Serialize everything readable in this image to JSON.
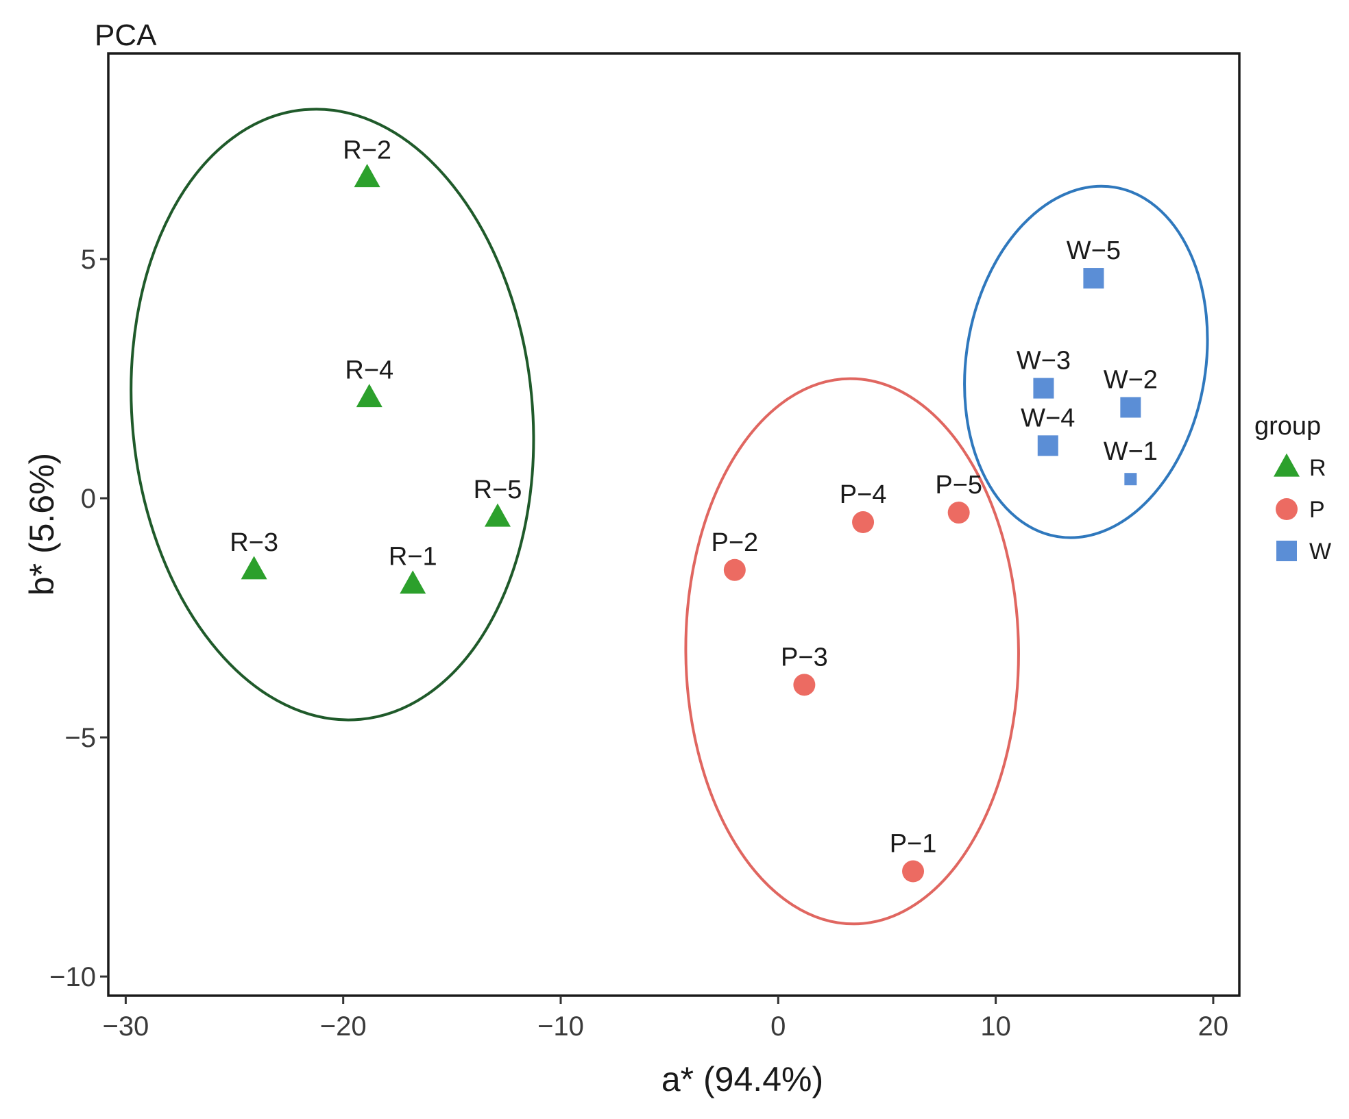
{
  "chart_data": {
    "type": "scatter",
    "title": "PCA",
    "xlabel": "a* (94.4%)",
    "ylabel": "b* (5.6%)",
    "xlim": [
      -30.8,
      21.2
    ],
    "ylim": [
      -10.4,
      9.3
    ],
    "xticks": [
      -30,
      -20,
      -10,
      0,
      10,
      20
    ],
    "xtick_labels": [
      "−30",
      "−20",
      "−10",
      "0",
      "10",
      "20"
    ],
    "yticks": [
      -10,
      -5,
      0,
      5
    ],
    "ytick_labels": [
      "−10",
      "−5",
      "0",
      "5"
    ],
    "grid": false,
    "legend": {
      "title": "group",
      "position": "right",
      "entries": [
        {
          "label": "R",
          "shape": "triangle",
          "color": "#2ca02c"
        },
        {
          "label": "P",
          "shape": "circle",
          "color": "#ec6b62"
        },
        {
          "label": "W",
          "shape": "square",
          "color": "#5b8ed6"
        }
      ]
    },
    "series": [
      {
        "name": "R",
        "shape": "triangle",
        "color": "#2ca02c",
        "ellipse_color": "#1f5a2a",
        "points": [
          {
            "label": "R−1",
            "x": -16.8,
            "y": -1.8
          },
          {
            "label": "R−2",
            "x": -18.9,
            "y": 6.7
          },
          {
            "label": "R−3",
            "x": -24.1,
            "y": -1.5
          },
          {
            "label": "R−4",
            "x": -18.8,
            "y": 2.1
          },
          {
            "label": "R−5",
            "x": -12.9,
            "y": -0.4
          }
        ],
        "ellipse": {
          "cx": -20.5,
          "cy": 1.75,
          "rx": 9.2,
          "ry": 6.4,
          "rotation_deg": -5.3
        }
      },
      {
        "name": "P",
        "shape": "circle",
        "color": "#ec6b62",
        "ellipse_color": "#e06660",
        "points": [
          {
            "label": "P−1",
            "x": 6.2,
            "y": -7.8
          },
          {
            "label": "P−2",
            "x": -2.0,
            "y": -1.5
          },
          {
            "label": "P−3",
            "x": 1.2,
            "y": -3.9
          },
          {
            "label": "P−4",
            "x": 3.9,
            "y": -0.5
          },
          {
            "label": "P−5",
            "x": 8.3,
            "y": -0.3
          }
        ],
        "ellipse": {
          "cx": 3.4,
          "cy": -3.2,
          "rx": 7.65,
          "ry": 5.7,
          "rotation_deg": -0.5
        }
      },
      {
        "name": "W",
        "shape": "square",
        "color": "#5b8ed6",
        "ellipse_color": "#2f78bd",
        "points": [
          {
            "label": "W−1",
            "x": 16.2,
            "y": 0.4,
            "size": "small"
          },
          {
            "label": "W−2",
            "x": 16.2,
            "y": 1.9
          },
          {
            "label": "W−3",
            "x": 12.2,
            "y": 2.3
          },
          {
            "label": "W−4",
            "x": 12.4,
            "y": 1.1
          },
          {
            "label": "W−5",
            "x": 14.5,
            "y": 4.6
          }
        ],
        "ellipse": {
          "cx": 14.15,
          "cy": 2.85,
          "rx": 5.5,
          "ry": 3.7,
          "rotation_deg": 9.3
        }
      }
    ]
  }
}
